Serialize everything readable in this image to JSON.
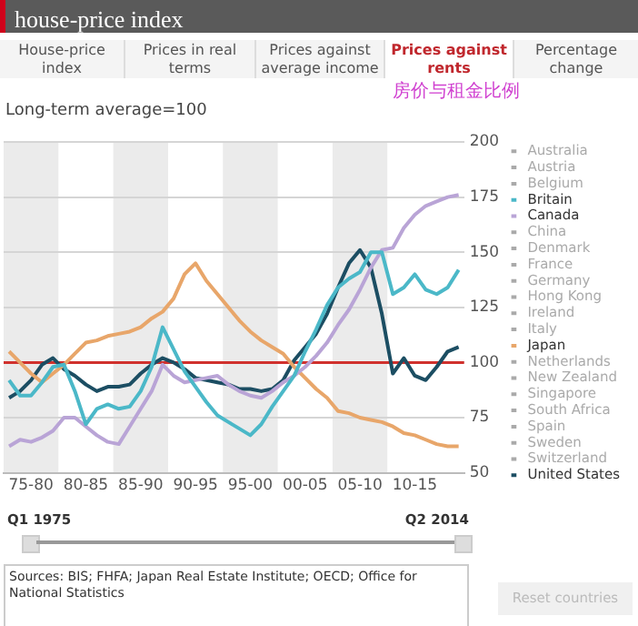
{
  "chart_data": {
    "type": "line",
    "title": "house-price index",
    "subtitle": "Long-term average=100",
    "annotations": [
      "House-price index",
      "Prices in real terms",
      "Prices against average income",
      "Prices against rents",
      "Percentage change",
      "房价与租金比例",
      "Q1 1975",
      "Q2 2014",
      "Sources: BIS; FHFA; Japan Real Estate Institute; OECD; Office for National Statistics",
      "Reset countries"
    ],
    "categories": [
      null,
      null,
      "75-80",
      null,
      null,
      null,
      null,
      "80-85",
      null,
      null,
      null,
      null,
      "85-90",
      null,
      null,
      null,
      null,
      "90-95",
      null,
      null,
      null,
      null,
      "95-00",
      null,
      null,
      null,
      null,
      "00-05",
      null,
      null,
      null,
      null,
      "05-10",
      null,
      null,
      null,
      null,
      "10-15",
      null,
      null,
      null,
      null
    ],
    "ylim": [
      50,
      200
    ],
    "yticks": [
      50,
      75,
      100,
      125,
      150,
      175,
      200
    ],
    "grid": true,
    "legend": "right",
    "ref_lines": [
      {
        "axis": "y",
        "value": 100,
        "color": "#d0312d"
      }
    ],
    "series": [
      {
        "name": "Australia",
        "color": "#aaaaaa",
        "values": [
          null,
          null,
          null,
          null,
          null,
          null,
          null,
          null,
          null,
          null,
          null,
          null,
          null,
          null,
          null,
          null,
          null,
          null,
          null,
          null,
          null,
          null,
          null,
          null,
          null,
          null,
          null,
          null,
          null,
          null,
          null,
          null,
          null,
          null,
          null,
          null,
          null,
          null,
          null,
          null,
          null,
          null
        ]
      },
      {
        "name": "Austria",
        "color": "#aaaaaa",
        "values": [
          null,
          null,
          null,
          null,
          null,
          null,
          null,
          null,
          null,
          null,
          null,
          null,
          null,
          null,
          null,
          null,
          null,
          null,
          null,
          null,
          null,
          null,
          null,
          null,
          null,
          null,
          null,
          null,
          null,
          null,
          null,
          null,
          null,
          null,
          null,
          null,
          null,
          null,
          null,
          null,
          null,
          null
        ]
      },
      {
        "name": "Belgium",
        "color": "#aaaaaa",
        "values": [
          null,
          null,
          null,
          null,
          null,
          null,
          null,
          null,
          null,
          null,
          null,
          null,
          null,
          null,
          null,
          null,
          null,
          null,
          null,
          null,
          null,
          null,
          null,
          null,
          null,
          null,
          null,
          null,
          null,
          null,
          null,
          null,
          null,
          null,
          null,
          null,
          null,
          null,
          null,
          null,
          null,
          null
        ]
      },
      {
        "name": "Britain",
        "color": "#4bb8c8",
        "values": [
          92,
          85,
          85,
          91,
          98,
          99,
          87,
          72,
          79,
          81,
          79,
          80,
          87,
          98,
          116,
          106,
          96,
          89,
          82,
          76,
          73,
          70,
          67,
          72,
          80,
          87,
          94,
          105,
          115,
          126,
          134,
          138,
          141,
          150,
          150,
          131,
          134,
          140,
          133,
          131,
          134,
          142
        ]
      },
      {
        "name": "Canada",
        "color": "#b9a4d6",
        "values": [
          62,
          65,
          64,
          66,
          69,
          75,
          75,
          71,
          67,
          64,
          63,
          71,
          79,
          87,
          99,
          94,
          91,
          92,
          93,
          94,
          90,
          87,
          85,
          84,
          87,
          91,
          94,
          98,
          103,
          109,
          117,
          124,
          133,
          143,
          151,
          152,
          161,
          167,
          171,
          173,
          175,
          176
        ]
      },
      {
        "name": "China",
        "color": "#aaaaaa",
        "values": [
          null,
          null,
          null,
          null,
          null,
          null,
          null,
          null,
          null,
          null,
          null,
          null,
          null,
          null,
          null,
          null,
          null,
          null,
          null,
          null,
          null,
          null,
          null,
          null,
          null,
          null,
          null,
          null,
          null,
          null,
          null,
          null,
          null,
          null,
          null,
          null,
          null,
          null,
          null,
          null,
          null,
          null
        ]
      },
      {
        "name": "Denmark",
        "color": "#aaaaaa",
        "values": [
          null,
          null,
          null,
          null,
          null,
          null,
          null,
          null,
          null,
          null,
          null,
          null,
          null,
          null,
          null,
          null,
          null,
          null,
          null,
          null,
          null,
          null,
          null,
          null,
          null,
          null,
          null,
          null,
          null,
          null,
          null,
          null,
          null,
          null,
          null,
          null,
          null,
          null,
          null,
          null,
          null,
          null
        ]
      },
      {
        "name": "France",
        "color": "#aaaaaa",
        "values": [
          null,
          null,
          null,
          null,
          null,
          null,
          null,
          null,
          null,
          null,
          null,
          null,
          null,
          null,
          null,
          null,
          null,
          null,
          null,
          null,
          null,
          null,
          null,
          null,
          null,
          null,
          null,
          null,
          null,
          null,
          null,
          null,
          null,
          null,
          null,
          null,
          null,
          null,
          null,
          null,
          null,
          null
        ]
      },
      {
        "name": "Germany",
        "color": "#aaaaaa",
        "values": [
          null,
          null,
          null,
          null,
          null,
          null,
          null,
          null,
          null,
          null,
          null,
          null,
          null,
          null,
          null,
          null,
          null,
          null,
          null,
          null,
          null,
          null,
          null,
          null,
          null,
          null,
          null,
          null,
          null,
          null,
          null,
          null,
          null,
          null,
          null,
          null,
          null,
          null,
          null,
          null,
          null,
          null
        ]
      },
      {
        "name": "Hong Kong",
        "color": "#aaaaaa",
        "values": [
          null,
          null,
          null,
          null,
          null,
          null,
          null,
          null,
          null,
          null,
          null,
          null,
          null,
          null,
          null,
          null,
          null,
          null,
          null,
          null,
          null,
          null,
          null,
          null,
          null,
          null,
          null,
          null,
          null,
          null,
          null,
          null,
          null,
          null,
          null,
          null,
          null,
          null,
          null,
          null,
          null,
          null
        ]
      },
      {
        "name": "Ireland",
        "color": "#aaaaaa",
        "values": [
          null,
          null,
          null,
          null,
          null,
          null,
          null,
          null,
          null,
          null,
          null,
          null,
          null,
          null,
          null,
          null,
          null,
          null,
          null,
          null,
          null,
          null,
          null,
          null,
          null,
          null,
          null,
          null,
          null,
          null,
          null,
          null,
          null,
          null,
          null,
          null,
          null,
          null,
          null,
          null,
          null,
          null
        ]
      },
      {
        "name": "Italy",
        "color": "#aaaaaa",
        "values": [
          null,
          null,
          null,
          null,
          null,
          null,
          null,
          null,
          null,
          null,
          null,
          null,
          null,
          null,
          null,
          null,
          null,
          null,
          null,
          null,
          null,
          null,
          null,
          null,
          null,
          null,
          null,
          null,
          null,
          null,
          null,
          null,
          null,
          null,
          null,
          null,
          null,
          null,
          null,
          null,
          null,
          null
        ]
      },
      {
        "name": "Japan",
        "color": "#e8a66a",
        "values": [
          105,
          100,
          95,
          91,
          95,
          99,
          104,
          109,
          110,
          112,
          113,
          114,
          116,
          120,
          123,
          129,
          140,
          145,
          137,
          131,
          125,
          119,
          114,
          110,
          107,
          104,
          98,
          93,
          88,
          84,
          78,
          77,
          75,
          74,
          73,
          71,
          68,
          67,
          65,
          63,
          62,
          62
        ]
      },
      {
        "name": "Netherlands",
        "color": "#aaaaaa",
        "values": [
          null,
          null,
          null,
          null,
          null,
          null,
          null,
          null,
          null,
          null,
          null,
          null,
          null,
          null,
          null,
          null,
          null,
          null,
          null,
          null,
          null,
          null,
          null,
          null,
          null,
          null,
          null,
          null,
          null,
          null,
          null,
          null,
          null,
          null,
          null,
          null,
          null,
          null,
          null,
          null,
          null,
          null
        ]
      },
      {
        "name": "New Zealand",
        "color": "#aaaaaa",
        "values": [
          null,
          null,
          null,
          null,
          null,
          null,
          null,
          null,
          null,
          null,
          null,
          null,
          null,
          null,
          null,
          null,
          null,
          null,
          null,
          null,
          null,
          null,
          null,
          null,
          null,
          null,
          null,
          null,
          null,
          null,
          null,
          null,
          null,
          null,
          null,
          null,
          null,
          null,
          null,
          null,
          null,
          null
        ]
      },
      {
        "name": "Singapore",
        "color": "#aaaaaa",
        "values": [
          null,
          null,
          null,
          null,
          null,
          null,
          null,
          null,
          null,
          null,
          null,
          null,
          null,
          null,
          null,
          null,
          null,
          null,
          null,
          null,
          null,
          null,
          null,
          null,
          null,
          null,
          null,
          null,
          null,
          null,
          null,
          null,
          null,
          null,
          null,
          null,
          null,
          null,
          null,
          null,
          null,
          null
        ]
      },
      {
        "name": "South Africa",
        "color": "#aaaaaa",
        "values": [
          null,
          null,
          null,
          null,
          null,
          null,
          null,
          null,
          null,
          null,
          null,
          null,
          null,
          null,
          null,
          null,
          null,
          null,
          null,
          null,
          null,
          null,
          null,
          null,
          null,
          null,
          null,
          null,
          null,
          null,
          null,
          null,
          null,
          null,
          null,
          null,
          null,
          null,
          null,
          null,
          null,
          null
        ]
      },
      {
        "name": "Spain",
        "color": "#aaaaaa",
        "values": [
          null,
          null,
          null,
          null,
          null,
          null,
          null,
          null,
          null,
          null,
          null,
          null,
          null,
          null,
          null,
          null,
          null,
          null,
          null,
          null,
          null,
          null,
          null,
          null,
          null,
          null,
          null,
          null,
          null,
          null,
          null,
          null,
          null,
          null,
          null,
          null,
          null,
          null,
          null,
          null,
          null,
          null
        ]
      },
      {
        "name": "Sweden",
        "color": "#aaaaaa",
        "values": [
          null,
          null,
          null,
          null,
          null,
          null,
          null,
          null,
          null,
          null,
          null,
          null,
          null,
          null,
          null,
          null,
          null,
          null,
          null,
          null,
          null,
          null,
          null,
          null,
          null,
          null,
          null,
          null,
          null,
          null,
          null,
          null,
          null,
          null,
          null,
          null,
          null,
          null,
          null,
          null,
          null,
          null
        ]
      },
      {
        "name": "Switzerland",
        "color": "#aaaaaa",
        "values": [
          null,
          null,
          null,
          null,
          null,
          null,
          null,
          null,
          null,
          null,
          null,
          null,
          null,
          null,
          null,
          null,
          null,
          null,
          null,
          null,
          null,
          null,
          null,
          null,
          null,
          null,
          null,
          null,
          null,
          null,
          null,
          null,
          null,
          null,
          null,
          null,
          null,
          null,
          null,
          null,
          null,
          null
        ]
      },
      {
        "name": "United States",
        "color": "#1c4e63",
        "values": [
          84,
          87,
          92,
          99,
          102,
          97,
          94,
          90,
          87,
          89,
          89,
          90,
          95,
          99,
          102,
          100,
          97,
          93,
          92,
          91,
          90,
          88,
          88,
          87,
          88,
          92,
          101,
          107,
          113,
          122,
          134,
          145,
          151,
          143,
          122,
          95,
          102,
          94,
          92,
          98,
          105,
          107
        ]
      }
    ]
  }
}
